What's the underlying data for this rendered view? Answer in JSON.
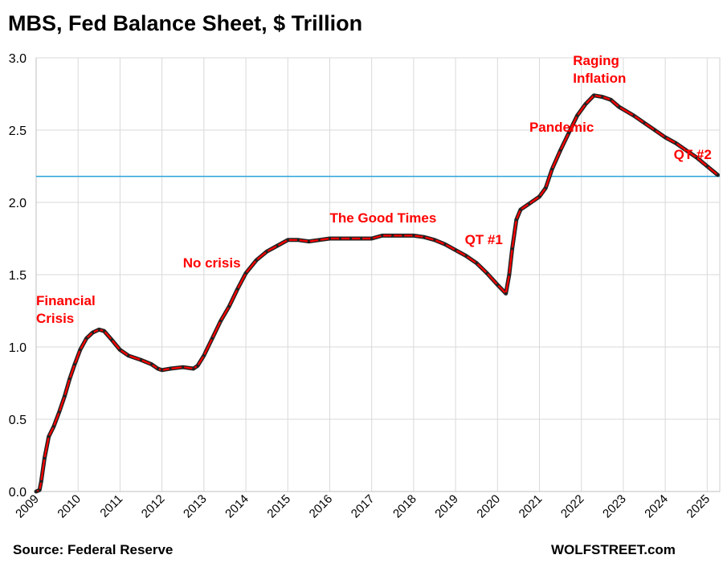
{
  "chart_data": {
    "type": "line",
    "title": "MBS, Fed Balance Sheet, $ Trillion",
    "xlabel": "",
    "ylabel": "",
    "xlim": [
      2009.0,
      2025.3
    ],
    "ylim": [
      0,
      3.0
    ],
    "y_ticks": [
      "0.0",
      "0.5",
      "1.0",
      "1.5",
      "2.0",
      "2.5",
      "3.0"
    ],
    "x_ticks": [
      "2009",
      "2010",
      "2011",
      "2012",
      "2013",
      "2014",
      "2015",
      "2016",
      "2017",
      "2018",
      "2019",
      "2020",
      "2021",
      "2022",
      "2023",
      "2024",
      "2025"
    ],
    "grid": true,
    "reference_line": {
      "y": 2.18,
      "color": "#29a3d9"
    },
    "series": [
      {
        "color": "#ff0000",
        "marker_color": "#222222",
        "points": [
          [
            2009.0,
            0.0
          ],
          [
            2009.08,
            0.01
          ],
          [
            2009.12,
            0.07
          ],
          [
            2009.2,
            0.23
          ],
          [
            2009.3,
            0.38
          ],
          [
            2009.42,
            0.45
          ],
          [
            2009.55,
            0.55
          ],
          [
            2009.68,
            0.66
          ],
          [
            2009.8,
            0.78
          ],
          [
            2009.92,
            0.88
          ],
          [
            2010.05,
            0.98
          ],
          [
            2010.2,
            1.06
          ],
          [
            2010.35,
            1.1
          ],
          [
            2010.5,
            1.12
          ],
          [
            2010.62,
            1.11
          ],
          [
            2010.8,
            1.05
          ],
          [
            2011.0,
            0.98
          ],
          [
            2011.2,
            0.94
          ],
          [
            2011.5,
            0.91
          ],
          [
            2011.75,
            0.88
          ],
          [
            2011.9,
            0.85
          ],
          [
            2012.0,
            0.84
          ],
          [
            2012.2,
            0.85
          ],
          [
            2012.5,
            0.86
          ],
          [
            2012.75,
            0.85
          ],
          [
            2012.85,
            0.87
          ],
          [
            2013.0,
            0.94
          ],
          [
            2013.2,
            1.06
          ],
          [
            2013.4,
            1.18
          ],
          [
            2013.6,
            1.28
          ],
          [
            2013.8,
            1.4
          ],
          [
            2014.0,
            1.51
          ],
          [
            2014.25,
            1.6
          ],
          [
            2014.5,
            1.66
          ],
          [
            2014.75,
            1.7
          ],
          [
            2015.0,
            1.74
          ],
          [
            2015.25,
            1.74
          ],
          [
            2015.5,
            1.73
          ],
          [
            2015.75,
            1.74
          ],
          [
            2016.0,
            1.75
          ],
          [
            2016.25,
            1.75
          ],
          [
            2016.5,
            1.75
          ],
          [
            2016.75,
            1.75
          ],
          [
            2017.0,
            1.75
          ],
          [
            2017.25,
            1.77
          ],
          [
            2017.5,
            1.77
          ],
          [
            2017.75,
            1.77
          ],
          [
            2018.0,
            1.77
          ],
          [
            2018.25,
            1.76
          ],
          [
            2018.5,
            1.74
          ],
          [
            2018.75,
            1.71
          ],
          [
            2019.0,
            1.67
          ],
          [
            2019.25,
            1.63
          ],
          [
            2019.5,
            1.58
          ],
          [
            2019.75,
            1.51
          ],
          [
            2020.0,
            1.43
          ],
          [
            2020.2,
            1.37
          ],
          [
            2020.28,
            1.5
          ],
          [
            2020.35,
            1.68
          ],
          [
            2020.45,
            1.88
          ],
          [
            2020.55,
            1.95
          ],
          [
            2020.75,
            1.99
          ],
          [
            2021.0,
            2.04
          ],
          [
            2021.15,
            2.1
          ],
          [
            2021.3,
            2.23
          ],
          [
            2021.5,
            2.36
          ],
          [
            2021.7,
            2.48
          ],
          [
            2021.9,
            2.6
          ],
          [
            2022.1,
            2.68
          ],
          [
            2022.3,
            2.74
          ],
          [
            2022.5,
            2.73
          ],
          [
            2022.7,
            2.71
          ],
          [
            2022.9,
            2.66
          ],
          [
            2023.25,
            2.6
          ],
          [
            2023.5,
            2.55
          ],
          [
            2023.75,
            2.5
          ],
          [
            2024.0,
            2.45
          ],
          [
            2024.25,
            2.41
          ],
          [
            2024.5,
            2.36
          ],
          [
            2024.75,
            2.31
          ],
          [
            2025.0,
            2.25
          ],
          [
            2025.25,
            2.19
          ]
        ]
      }
    ],
    "annotations": [
      {
        "lines": [
          "Financial",
          "Crisis"
        ],
        "x": 2009.0,
        "y": 1.29
      },
      {
        "lines": [
          "No crisis"
        ],
        "x": 2012.5,
        "y": 1.55
      },
      {
        "lines": [
          "The Good Times"
        ],
        "x": 2016.0,
        "y": 1.86
      },
      {
        "lines": [
          "QT #1"
        ],
        "x": 2019.22,
        "y": 1.71
      },
      {
        "lines": [
          "Pandemic"
        ],
        "x": 2020.76,
        "y": 2.49
      },
      {
        "lines": [
          "Raging",
          "Inflation"
        ],
        "x": 2021.8,
        "y": 2.95
      },
      {
        "lines": [
          "QT #2"
        ],
        "x": 2024.2,
        "y": 2.3
      }
    ]
  },
  "footer": {
    "source": "Source: Federal Reserve",
    "brand": "WOLFSTREET.com"
  }
}
